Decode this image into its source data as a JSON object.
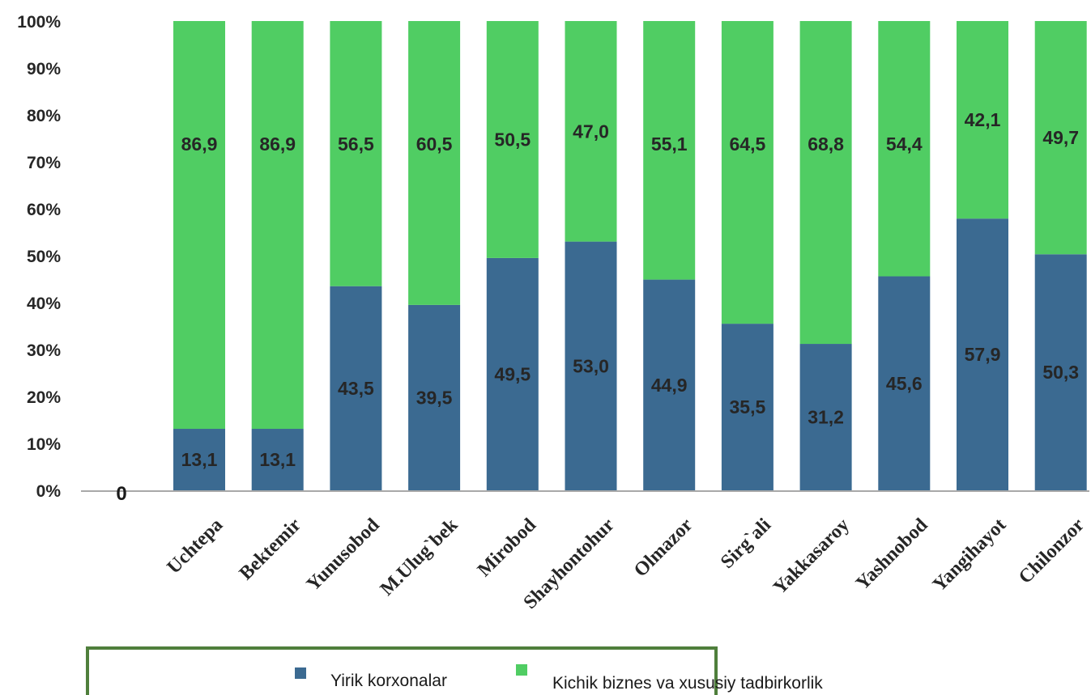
{
  "chart_data": {
    "type": "bar",
    "stacked": true,
    "percent_stacked": true,
    "categories": [
      "Uchtepa",
      "Bektemir",
      "Yunusobod",
      "M.Ulug`bek",
      "Mirobod",
      "Shayhontohur",
      "Olmazor",
      "Sirg`ali",
      "Yakkasaroy",
      "Yashnobod",
      "Yangihayot",
      "Chilonzor"
    ],
    "series": [
      {
        "name": "Yirik korxonalar",
        "color": "#3b6a91",
        "values": [
          13.1,
          13.1,
          43.5,
          39.5,
          49.5,
          53.0,
          44.9,
          35.5,
          31.2,
          45.6,
          57.9,
          50.3
        ],
        "labels": [
          "13,1",
          "13,1",
          "43,5",
          "39,5",
          "49,5",
          "53,0",
          "44,9",
          "35,5",
          "31,2",
          "45,6",
          "57,9",
          "50,3"
        ]
      },
      {
        "name": "Kichik biznes va xususiy tadbirkorlik",
        "color": "#50cd63",
        "values": [
          86.9,
          86.9,
          56.5,
          60.5,
          50.5,
          47.0,
          55.1,
          64.5,
          68.8,
          54.4,
          42.1,
          49.7
        ],
        "labels": [
          "86,9",
          "86,9",
          "56,5",
          "60,5",
          "50,5",
          "47,0",
          "55,1",
          "64,5",
          "68,8",
          "54,4",
          "42,1",
          "49,7"
        ]
      }
    ],
    "extra_label": "0",
    "y_ticks": [
      "0%",
      "10%",
      "20%",
      "30%",
      "40%",
      "50%",
      "60%",
      "70%",
      "80%",
      "90%",
      "100%"
    ],
    "ylim": [
      0,
      100
    ],
    "grid": false,
    "legend": "bottom"
  }
}
